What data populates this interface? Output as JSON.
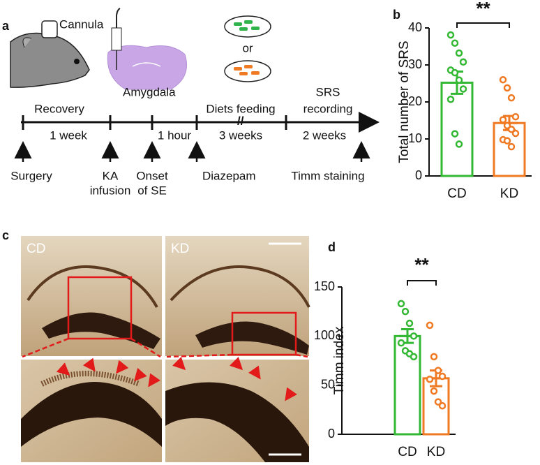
{
  "panel_labels": [
    "a",
    "b",
    "c",
    "d"
  ],
  "schematic": {
    "cannula": "Cannula",
    "amygdala": "Amygdala",
    "or": "or"
  },
  "timeline": {
    "above": [
      "Recovery",
      "Diets feeding",
      "SRS",
      "recording"
    ],
    "below": [
      "1 week",
      "1 hour",
      "3 weeks",
      "2 weeks"
    ],
    "events": [
      [
        "Surgery"
      ],
      [
        "KA",
        "infusion"
      ],
      [
        "Onset",
        "of SE"
      ],
      [
        "Diazepam"
      ],
      [
        "Timm staining"
      ]
    ]
  },
  "micrographs": {
    "left": "CD",
    "right": "KD"
  },
  "chart_data": [
    {
      "type": "bar",
      "ylabel": "Total number of SRS",
      "categories": [
        "CD",
        "KD"
      ],
      "values": [
        25.2,
        14.3
      ],
      "errors": [
        3.0,
        1.9
      ],
      "points": [
        [
          38.1,
          35.9,
          33.2,
          30.8,
          28.6,
          27.9,
          25.9,
          23.5,
          20.7,
          11.4,
          8.6
        ],
        [
          26,
          23.8,
          21.1,
          16,
          15.2,
          13.6,
          12.6,
          11.5,
          9.8,
          9.5,
          7.9
        ]
      ],
      "colors": [
        "#33b833",
        "#f07a23"
      ],
      "ylim": [
        0,
        40
      ],
      "yticks": [
        0,
        10,
        20,
        30,
        40
      ],
      "annotation": "**"
    },
    {
      "type": "bar",
      "ylabel": "Timm index",
      "categories": [
        "CD",
        "KD"
      ],
      "values": [
        100,
        57
      ],
      "errors": [
        7,
        8
      ],
      "points": [
        [
          133,
          125,
          113,
          100,
          93,
          85,
          82,
          79
        ],
        [
          111,
          79,
          65,
          59,
          56,
          44,
          33,
          29
        ]
      ],
      "colors": [
        "#33b833",
        "#f07a23"
      ],
      "ylim": [
        0,
        150
      ],
      "yticks": [
        0,
        50,
        100,
        150
      ],
      "annotation": "**"
    }
  ]
}
